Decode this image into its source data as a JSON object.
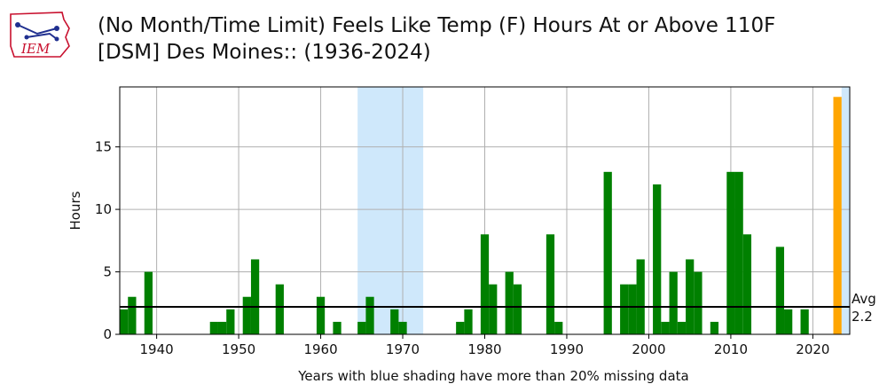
{
  "header": {
    "logo_text": "IEM",
    "title_line1": "(No Month/Time Limit) Feels Like Temp (F) Hours At or Above 110F",
    "title_line2": "[DSM] Des Moines:: (1936-2024)"
  },
  "chart_data": {
    "type": "bar",
    "ylabel": "Hours",
    "xlabel": "Years with blue shading have more than 20% missing data",
    "xlim": [
      1935.5,
      2024.5
    ],
    "ylim": [
      0,
      19.8
    ],
    "x_ticks": [
      1940,
      1950,
      1960,
      1970,
      1980,
      1990,
      2000,
      2010,
      2020
    ],
    "y_ticks": [
      0,
      5,
      10,
      15
    ],
    "grid": true,
    "missing_data_shading": [
      [
        1964.5,
        1972.5
      ],
      [
        2023.5,
        2024.5
      ]
    ],
    "average": {
      "label": "Avg",
      "value": 2.2
    },
    "colors": {
      "bar": "#008000",
      "highlight": "#ffa500",
      "shade": "#cfe8fb",
      "avg_line": "#000000"
    },
    "highlight_year": 2023,
    "x": [
      1936,
      1937,
      1939,
      1947,
      1948,
      1949,
      1951,
      1952,
      1955,
      1960,
      1962,
      1965,
      1966,
      1969,
      1970,
      1977,
      1978,
      1980,
      1981,
      1983,
      1984,
      1988,
      1989,
      1995,
      1997,
      1998,
      1999,
      2001,
      2002,
      2003,
      2004,
      2005,
      2006,
      2008,
      2010,
      2011,
      2012,
      2016,
      2017,
      2019,
      2023
    ],
    "values": [
      2,
      3,
      5,
      1,
      1,
      2,
      3,
      6,
      4,
      3,
      1,
      1,
      3,
      2,
      1,
      1,
      2,
      8,
      4,
      5,
      4,
      8,
      1,
      13,
      4,
      4,
      6,
      12,
      1,
      5,
      1,
      6,
      5,
      1,
      13,
      13,
      8,
      7,
      2,
      2,
      19
    ]
  }
}
